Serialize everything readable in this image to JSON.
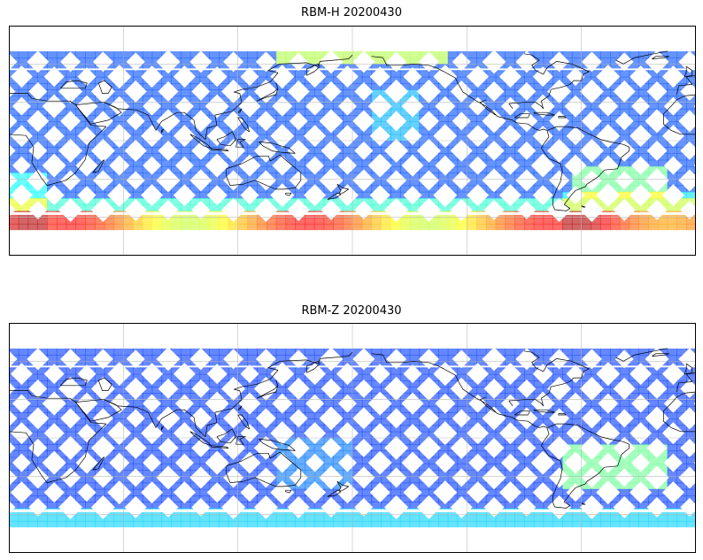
{
  "panels": [
    {
      "title": "RBM-H 20200430",
      "colormap": "jet",
      "alpha": 0.6
    },
    {
      "title": "RBM-Z 20200430",
      "colormap": "jet",
      "alpha": 0.6
    }
  ],
  "map": {
    "projection": "PlateCarree",
    "central_longitude": 180,
    "extent": {
      "lon": [
        0,
        360
      ],
      "lat": [
        -90,
        90
      ]
    },
    "data_lat_range": [
      -70,
      70
    ],
    "gridlines_lon": [
      60,
      120,
      180,
      240,
      300
    ],
    "gridlines_lat": [
      -60,
      -30,
      0,
      30,
      60
    ]
  }
}
